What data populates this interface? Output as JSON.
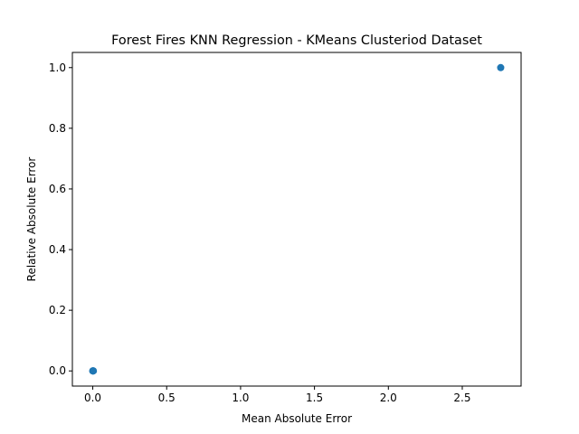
{
  "chart_data": {
    "type": "scatter",
    "title": "Forest Fires KNN Regression - KMeans Clusteriod Dataset",
    "xlabel": "Mean Absolute Error",
    "ylabel": "Relative Absolute Error",
    "xlim": [
      -0.138,
      2.898
    ],
    "ylim": [
      -0.05,
      1.05
    ],
    "xticks": [
      0.0,
      0.5,
      1.0,
      1.5,
      2.0,
      2.5
    ],
    "yticks": [
      0.0,
      0.2,
      0.4,
      0.6,
      0.8,
      1.0
    ],
    "xtick_labels": [
      "0.0",
      "0.5",
      "1.0",
      "1.5",
      "2.0",
      "2.5"
    ],
    "ytick_labels": [
      "0.0",
      "0.2",
      "0.4",
      "0.6",
      "0.8",
      "1.0"
    ],
    "grid": false,
    "marker_color": "#1f77b4",
    "points": [
      {
        "x": 0.0,
        "y": 0.0
      },
      {
        "x": 0.002,
        "y": 0.0
      },
      {
        "x": 0.004,
        "y": 0.0
      },
      {
        "x": 0.001,
        "y": 0.0
      },
      {
        "x": 2.76,
        "y": 1.0
      }
    ]
  }
}
